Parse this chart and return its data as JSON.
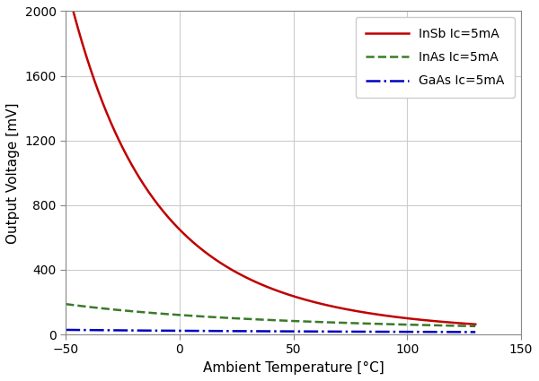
{
  "title": "",
  "xlabel": "Ambient Temperature [°C]",
  "ylabel": "Output Voltage [mV]",
  "xlim": [
    -50,
    150
  ],
  "ylim": [
    0,
    2000
  ],
  "xticks": [
    -50,
    0,
    50,
    100,
    150
  ],
  "yticks": [
    0,
    400,
    800,
    1200,
    1600,
    2000
  ],
  "grid": true,
  "background_color": "#ffffff",
  "plot_bg_color": "#ffffff",
  "grid_color": "#cccccc",
  "lines": [
    {
      "label": "InSb Ic=5mA",
      "color": "#c00000",
      "linestyle": "-",
      "linewidth": 1.8,
      "A": 370.0,
      "n": 6.0
    },
    {
      "label": "InAs Ic=5mA",
      "color": "#3a7a2a",
      "linestyle": "--",
      "linewidth": 1.8,
      "A": 98.0,
      "n": 2.2
    },
    {
      "label": "GaAs Ic=5mA",
      "color": "#0000c0",
      "linestyle": "-.",
      "linewidth": 1.8,
      "A": 20.5,
      "n": 1.1
    }
  ],
  "T_ref": 300.0,
  "T_start": -50,
  "T_end": 130,
  "legend_loc": "upper right",
  "legend_fontsize": 10,
  "axis_fontsize": 11,
  "tick_fontsize": 10
}
